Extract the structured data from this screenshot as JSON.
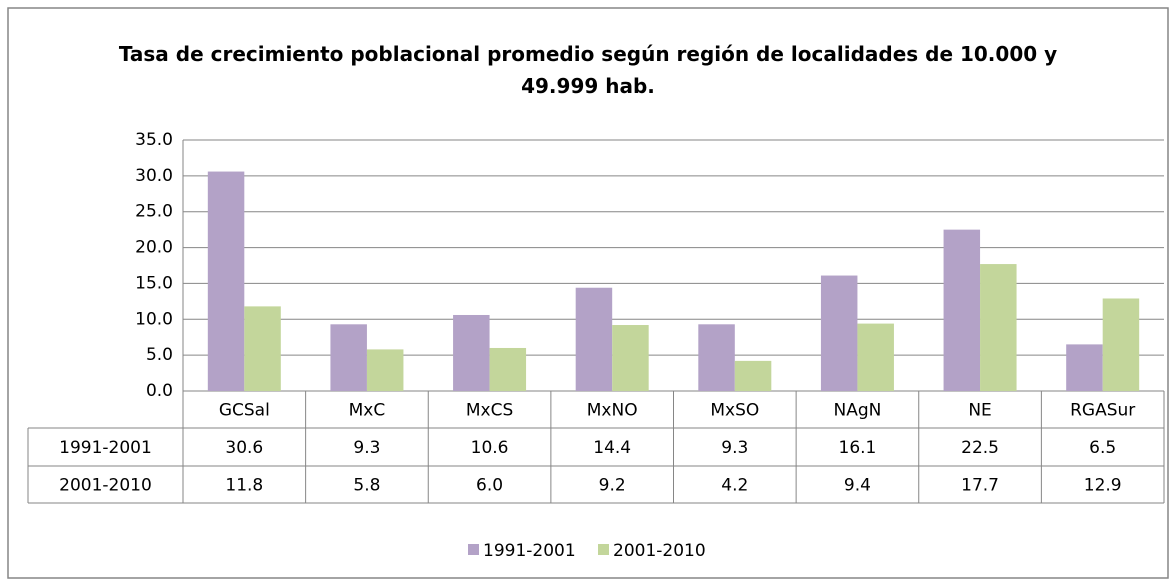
{
  "chart_data": {
    "type": "bar",
    "title": "Tasa de crecimiento poblacional promedio según región de localidades de 10.000 y 49.999 hab.",
    "categories": [
      "GCSal",
      "MxC",
      "MxCS",
      "MxNO",
      "MxSO",
      "NAgN",
      "NE",
      "RGASur"
    ],
    "series": [
      {
        "name": "1991-2001",
        "color": "#b3a2c7",
        "values": [
          30.6,
          9.3,
          10.6,
          14.4,
          9.3,
          16.1,
          22.5,
          6.5
        ],
        "value_labels": [
          "30.6",
          "9.3",
          "10.6",
          "14.4",
          "9.3",
          "16.1",
          "22.5",
          "6.5"
        ]
      },
      {
        "name": "2001-2010",
        "color": "#c3d69b",
        "values": [
          11.8,
          5.8,
          6.0,
          9.2,
          4.2,
          9.4,
          17.7,
          12.9
        ],
        "value_labels": [
          "11.8",
          "5.8",
          "6.0",
          "9.2",
          "4.2",
          "9.4",
          "17.7",
          "12.9"
        ]
      }
    ],
    "ylim": [
      0,
      35
    ],
    "yticks": [
      {
        "value": 0,
        "label": "0.0"
      },
      {
        "value": 5,
        "label": "5.0"
      },
      {
        "value": 10,
        "label": "10.0"
      },
      {
        "value": 15,
        "label": "15.0"
      },
      {
        "value": 20,
        "label": "20.0"
      },
      {
        "value": 25,
        "label": "25.0"
      },
      {
        "value": 30,
        "label": "30.0"
      },
      {
        "value": 35,
        "label": "35.0"
      }
    ],
    "grid": true,
    "legend": "bottom"
  }
}
